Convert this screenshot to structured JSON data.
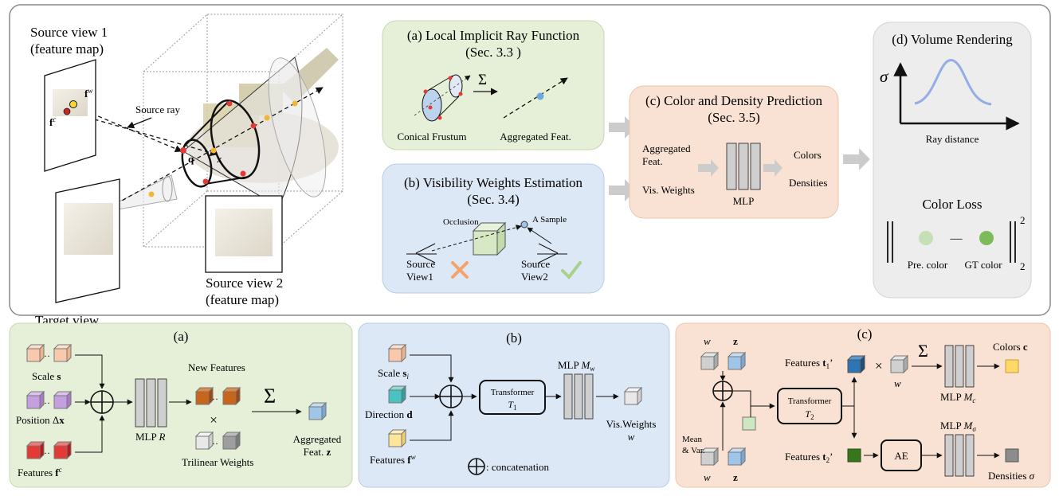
{
  "top": {
    "source_view1": [
      "Source view 1",
      "(feature map)"
    ],
    "source_ray": "Source ray",
    "f_w": "f",
    "f_w_sup": "w",
    "f_c": "f",
    "f_c_sup": "c",
    "q": "q",
    "x": "x",
    "target_view": "Target view",
    "source_view2": [
      "Source view 2",
      "(feature map)"
    ],
    "panel_a": {
      "title": [
        "(a) Local Implicit Ray Function",
        "(Sec. 3.3 )"
      ],
      "sigma": "Σ",
      "frustum": "Conical Frustum",
      "aggregated": "Aggregated Feat."
    },
    "panel_b": {
      "title": [
        "(b) Visibility Weights Estimation",
        "(Sec. 3.4)"
      ],
      "occlusion": "Occlusion",
      "sample": "A Sample",
      "view1": [
        "Source",
        "View1"
      ],
      "view2": [
        "Source",
        "View2"
      ]
    },
    "panel_c": {
      "title": [
        "(c) Color and Density Prediction",
        "(Sec. 3.5)"
      ],
      "in1": [
        "Aggregated",
        "Feat."
      ],
      "in2": "Vis. Weights",
      "mlp": "MLP",
      "out1": "Colors",
      "out2": "Densities"
    },
    "panel_d": {
      "title": "(d)  Volume Rendering",
      "sigma": "σ",
      "xaxis": "Ray distance",
      "loss": "Color Loss",
      "minus": "—",
      "sup": "2",
      "sub": "2",
      "pre": "Pre. color",
      "gt": "GT color"
    }
  },
  "bottom": {
    "a": {
      "label": "(a)",
      "scale": "Scale ",
      "scale_sym": "s",
      "position": "Position Δ",
      "position_sym": "x",
      "features": "Features  ",
      "features_sym": "f",
      "features_sup": "c",
      "mlp": "MLP ",
      "mlp_sym": "R",
      "new_features": "New Features",
      "times": "×",
      "trilinear": "Trilinear Weights",
      "sigma": "Σ",
      "agg": [
        "Aggregated",
        "Feat. "
      ],
      "agg_sym": "z"
    },
    "b": {
      "label": "(b)",
      "scale": "Scale ",
      "scale_sym": "s",
      "scale_sub": "i",
      "direction": "Direction ",
      "direction_sym": "d",
      "features": "Features ",
      "features_sym": "f",
      "features_sup": "w",
      "transformer": "Transformer",
      "transformer_sym": "T",
      "transformer_sub": "1",
      "mlp": "MLP ",
      "mlp_sym": "M",
      "mlp_sub": "w",
      "vis": "Vis.Weights",
      "vis_sym": "w",
      "concat": " : concatenation"
    },
    "c": {
      "label": "(c)",
      "w": "w",
      "z": "z",
      "mean": [
        "Mean",
        "& Var."
      ],
      "transformer": "Transformer",
      "transformer_sym": "T",
      "transformer_sub": "2",
      "feat1": "Features ",
      "feat1_sym": "t",
      "feat1_sub": "1",
      "feat1_prime": "’",
      "feat2": "Features ",
      "feat2_sym": "t",
      "feat2_sub": "2",
      "feat2_prime": "’",
      "times": "×",
      "sigma": "Σ",
      "mlp_c": "MLP ",
      "mlp_c_sym": "M",
      "mlp_c_sub": "c",
      "colors": "Colors ",
      "colors_sym": "c",
      "mlp_s": "MLP ",
      "mlp_s_sym": "M",
      "mlp_s_sub": "σ",
      "ae": "AE",
      "densities": "Densities ",
      "densities_sym": "σ"
    }
  }
}
